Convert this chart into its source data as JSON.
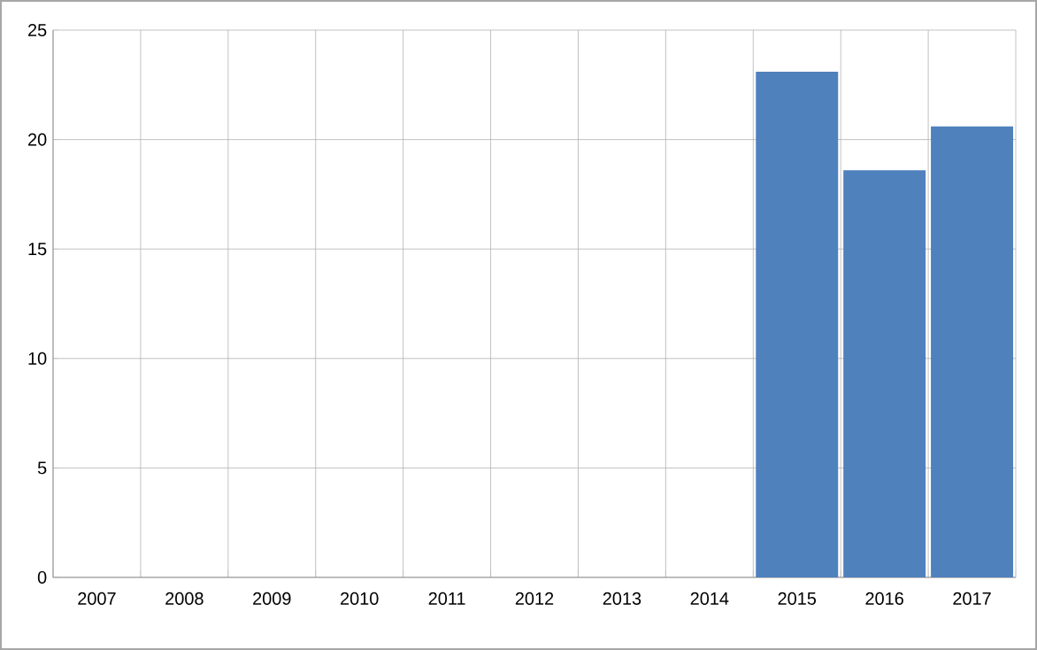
{
  "chart_data": {
    "type": "bar",
    "categories": [
      "2007",
      "2008",
      "2009",
      "2010",
      "2011",
      "2012",
      "2013",
      "2014",
      "2015",
      "2016",
      "2017"
    ],
    "values": [
      null,
      null,
      null,
      null,
      null,
      null,
      null,
      null,
      23.1,
      18.6,
      20.6
    ],
    "color": "#4f81bd",
    "ylim": [
      0,
      25
    ],
    "yticks": [
      0,
      5,
      10,
      15,
      20,
      25
    ],
    "grid": true
  }
}
